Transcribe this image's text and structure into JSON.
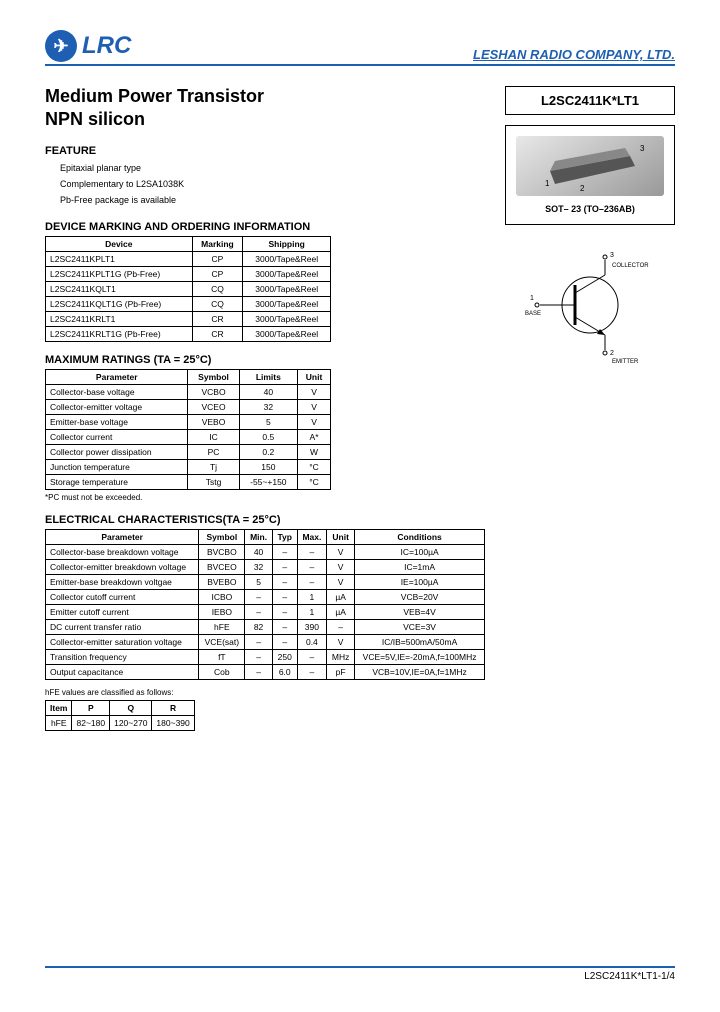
{
  "header": {
    "logo_text": "LRC",
    "company": "LESHAN RADIO COMPANY, LTD."
  },
  "title": "Medium Power Transistor",
  "subtitle": "NPN silicon",
  "part_number": "L2SC2411K*LT1",
  "package_label": "SOT– 23 (TO–236AB)",
  "feature": {
    "heading": "FEATURE",
    "items": [
      "Epitaxial planar type",
      "Complementary to L2SA1038K",
      "Pb-Free package is available"
    ]
  },
  "marking": {
    "heading": "DEVICE MARKING AND ORDERING INFORMATION",
    "columns": [
      "Device",
      "Marking",
      "Shipping"
    ],
    "rows": [
      [
        "L2SC2411KPLT1",
        "CP",
        "3000/Tape&Reel"
      ],
      [
        "L2SC2411KPLT1G\n(Pb-Free)",
        "CP",
        "3000/Tape&Reel"
      ],
      [
        "L2SC2411KQLT1",
        "CQ",
        "3000/Tape&Reel"
      ],
      [
        "L2SC2411KQLT1G\n(Pb-Free)",
        "CQ",
        "3000/Tape&Reel"
      ],
      [
        "L2SC2411KRLT1",
        "CR",
        "3000/Tape&Reel"
      ],
      [
        "L2SC2411KRLT1G\n(Pb-Free)",
        "CR",
        "3000/Tape&Reel"
      ]
    ]
  },
  "max_ratings": {
    "heading": "MAXIMUM RATINGS (TA = 25°C)",
    "columns": [
      "Parameter",
      "Symbol",
      "Limits",
      "Unit"
    ],
    "rows": [
      [
        "Collector-base voltage",
        "VCBO",
        "40",
        "V"
      ],
      [
        "Collector-emitter voltage",
        "VCEO",
        "32",
        "V"
      ],
      [
        "Emitter-base voltage",
        "VEBO",
        "5",
        "V"
      ],
      [
        "Collector current",
        "IC",
        "0.5",
        "A*"
      ],
      [
        "Collector power dissipation",
        "PC",
        "0.2",
        "W"
      ],
      [
        "Junction temperature",
        "Tj",
        "150",
        "°C"
      ],
      [
        "Storage temperature",
        "Tstg",
        "-55~+150",
        "°C"
      ]
    ],
    "note": "*PC must not be exceeded."
  },
  "electrical": {
    "heading": "ELECTRICAL CHARACTERISTICS(TA = 25°C)",
    "columns": [
      "Parameter",
      "Symbol",
      "Min.",
      "Typ",
      "Max.",
      "Unit",
      "Conditions"
    ],
    "rows": [
      [
        "Collector-base breakdown voltage",
        "BVCBO",
        "40",
        "–",
        "–",
        "V",
        "IC=100µA"
      ],
      [
        "Collector-emitter breakdown voltage",
        "BVCEO",
        "32",
        "–",
        "–",
        "V",
        "IC=1mA"
      ],
      [
        "Emitter-base breakdown voltgae",
        "BVEBO",
        "5",
        "–",
        "–",
        "V",
        "IE=100µA"
      ],
      [
        "Collector cutoff current",
        "ICBO",
        "–",
        "–",
        "1",
        "µA",
        "VCB=20V"
      ],
      [
        "Emitter cutoff current",
        "IEBO",
        "–",
        "–",
        "1",
        "µA",
        "VEB=4V"
      ],
      [
        "DC current transfer ratio",
        "hFE",
        "82",
        "–",
        "390",
        "–",
        "VCE=3V"
      ],
      [
        "Collector-emitter saturation voltage",
        "VCE(sat)",
        "–",
        "–",
        "0.4",
        "V",
        "IC/IB=500mA/50mA"
      ],
      [
        "Transition frequency",
        "fT",
        "–",
        "250",
        "–",
        "MHz",
        "VCE=5V,IE=-20mA,f=100MHz"
      ],
      [
        "Output capacitance",
        "Cob",
        "–",
        "6.0",
        "–",
        "pF",
        "VCB=10V,IE=0A,f=1MHz"
      ]
    ]
  },
  "hfe": {
    "heading": "hFE values are classified as follows:",
    "columns": [
      "Item",
      "P",
      "Q",
      "R"
    ],
    "rows": [
      [
        "hFE",
        "82~180",
        "120~270",
        "180~390"
      ]
    ]
  },
  "pins": {
    "p1": "1",
    "p1_label": "BASE",
    "p2": "2",
    "p2_label": "EMITTER",
    "p3": "3",
    "p3_label": "COLLECTOR"
  },
  "footer": "L2SC2411K*LT1-1/4"
}
